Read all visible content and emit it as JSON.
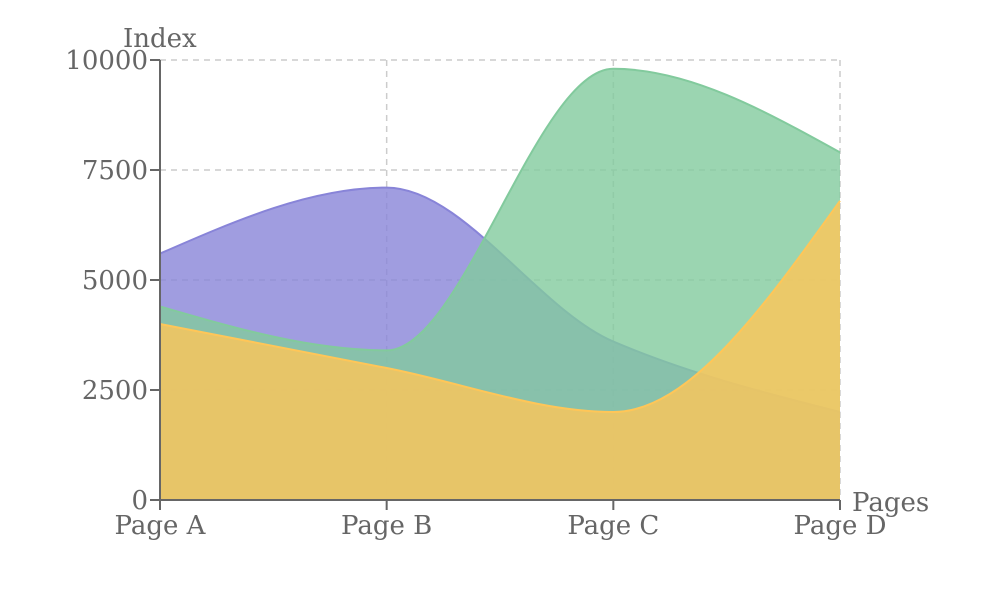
{
  "chart_data": {
    "type": "area",
    "title": "",
    "xlabel": "Pages",
    "ylabel": "Index",
    "categories": [
      "Page A",
      "Page B",
      "Page C",
      "Page D"
    ],
    "y_ticks": [
      "0",
      "2500",
      "5000",
      "7500",
      "10000"
    ],
    "ylim": [
      0,
      10000
    ],
    "grid": true,
    "legend": "none",
    "series": [
      {
        "color": "#8884d8",
        "values": [
          5600,
          7100,
          3600,
          2000
        ]
      },
      {
        "color": "#82ca9d",
        "values": [
          4400,
          3400,
          9800,
          7900
        ]
      },
      {
        "color": "#ffc658",
        "values": [
          4000,
          3000,
          2000,
          6800
        ]
      }
    ]
  }
}
